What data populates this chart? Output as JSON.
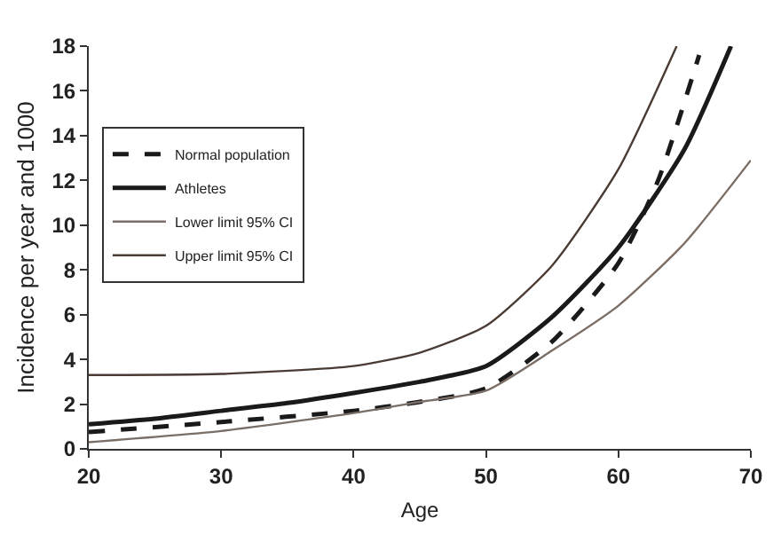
{
  "chart_data": {
    "type": "line",
    "xlabel": "Age",
    "ylabel": "Incidence per year and 1000",
    "xlim": [
      20,
      70
    ],
    "xticks": [
      20,
      30,
      40,
      50,
      60,
      70
    ],
    "ylim": [
      0,
      18
    ],
    "yticks": [
      0,
      2,
      4,
      6,
      8,
      10,
      12,
      14,
      16,
      18
    ],
    "grid": false,
    "legend": "top left",
    "marker": "none",
    "series": [
      {
        "name": "Normal population",
        "color": "#1a1a1a",
        "line_style": "dashed",
        "x": [
          20,
          30,
          40,
          45,
          50,
          55,
          60,
          63,
          66.1
        ],
        "values": [
          0.75,
          1.2,
          1.7,
          2.1,
          2.7,
          4.8,
          8.3,
          12,
          17.6
        ]
      },
      {
        "name": "Athletes",
        "color": "#1a1a1a",
        "line_style": "solid",
        "x": [
          20,
          25,
          30,
          35,
          40,
          45,
          50,
          55,
          60,
          65,
          68.5
        ],
        "values": [
          1.1,
          1.35,
          1.7,
          2.05,
          2.5,
          3.0,
          3.7,
          5.9,
          9.0,
          13.4,
          18
        ]
      },
      {
        "name": "Lower limit 95% CI",
        "color": "#7a6e66",
        "line_style": "solid",
        "x": [
          20,
          30,
          40,
          45,
          50,
          55,
          60,
          65,
          70
        ],
        "values": [
          0.3,
          0.8,
          1.6,
          2.1,
          2.6,
          4.4,
          6.4,
          9.2,
          12.9
        ]
      },
      {
        "name": "Upper limit 95% CI",
        "color": "#4a3c34",
        "line_style": "solid",
        "x": [
          20,
          30,
          40,
          45,
          50,
          55,
          60,
          64.4
        ],
        "values": [
          3.3,
          3.35,
          3.7,
          4.3,
          5.5,
          8.2,
          12.5,
          18
        ]
      }
    ]
  }
}
